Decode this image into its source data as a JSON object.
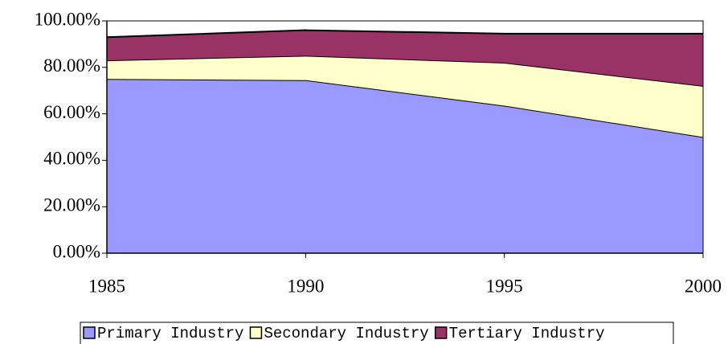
{
  "chart_data": {
    "type": "stacked-area",
    "x": [
      1985,
      1990,
      1995,
      2000
    ],
    "xlim": [
      1985,
      2000
    ],
    "xticks": [
      1985,
      1990,
      1995,
      2000
    ],
    "ylim": [
      0,
      100
    ],
    "yticks": [
      {
        "value": 0,
        "label": "0.00%"
      },
      {
        "value": 20,
        "label": "20.00%"
      },
      {
        "value": 40,
        "label": "40.00%"
      },
      {
        "value": 60,
        "label": "60.00%"
      },
      {
        "value": 80,
        "label": "80.00%"
      },
      {
        "value": 100,
        "label": "100.00%"
      }
    ],
    "series": [
      {
        "name": "Primary Industry",
        "color": "#9999ff",
        "values": [
          75,
          74.5,
          63.5,
          50
        ]
      },
      {
        "name": "Secondary Industry",
        "color": "#ffffcc",
        "values": [
          8,
          10.5,
          18.5,
          22
        ]
      },
      {
        "name": "Tertiary Industry",
        "color": "#993366",
        "values": [
          10,
          11,
          12.5,
          22.5
        ]
      }
    ]
  }
}
